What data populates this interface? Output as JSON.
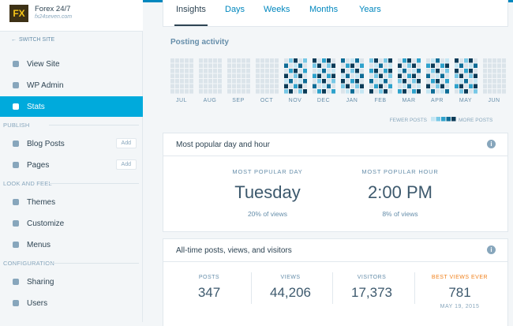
{
  "site": {
    "name": "Forex 24/7",
    "url": "fx24seven.com",
    "switch": "SWITCH SITE"
  },
  "nav": [
    {
      "label": "View Site",
      "top": 68
    },
    {
      "label": "WP Admin"
    },
    {
      "label": "Stats"
    },
    {
      "section": "PUBLISH"
    },
    {
      "label": "Blog Posts",
      "action": "Add"
    },
    {
      "label": "Pages",
      "action": "Add"
    },
    {
      "section": "LOOK AND FEEL"
    },
    {
      "label": "Themes"
    },
    {
      "label": "Customize"
    },
    {
      "label": "Menus"
    },
    {
      "section": "CONFIGURATION"
    },
    {
      "label": "Sharing"
    },
    {
      "label": "Users"
    }
  ],
  "tabs": [
    "Insights",
    "Days",
    "Weeks",
    "Months",
    "Years"
  ],
  "posting_activity": {
    "title": "Posting activity",
    "months": [
      "JUL",
      "AUG",
      "SEP",
      "OCT",
      "NOV",
      "DEC",
      "JAN",
      "FEB",
      "MAR",
      "APR",
      "MAY",
      "JUN"
    ],
    "legend_less": "FEWER POSTS",
    "legend_more": "MORE POSTS"
  },
  "popular": {
    "title": "Most popular day and hour",
    "day_label": "MOST POPULAR DAY",
    "day": "Tuesday",
    "day_sub": "20% of views",
    "hour_label": "MOST POPULAR HOUR",
    "hour": "2:00 PM",
    "hour_sub": "8% of views"
  },
  "alltime": {
    "title": "All-time posts, views, and visitors",
    "stats": [
      {
        "label": "POSTS",
        "value": "347"
      },
      {
        "label": "VIEWS",
        "value": "44,206"
      },
      {
        "label": "VISITORS",
        "value": "17,373"
      }
    ],
    "best": {
      "label": "BEST VIEWS EVER",
      "value": "781",
      "date": "MAY 19, 2015"
    }
  }
}
